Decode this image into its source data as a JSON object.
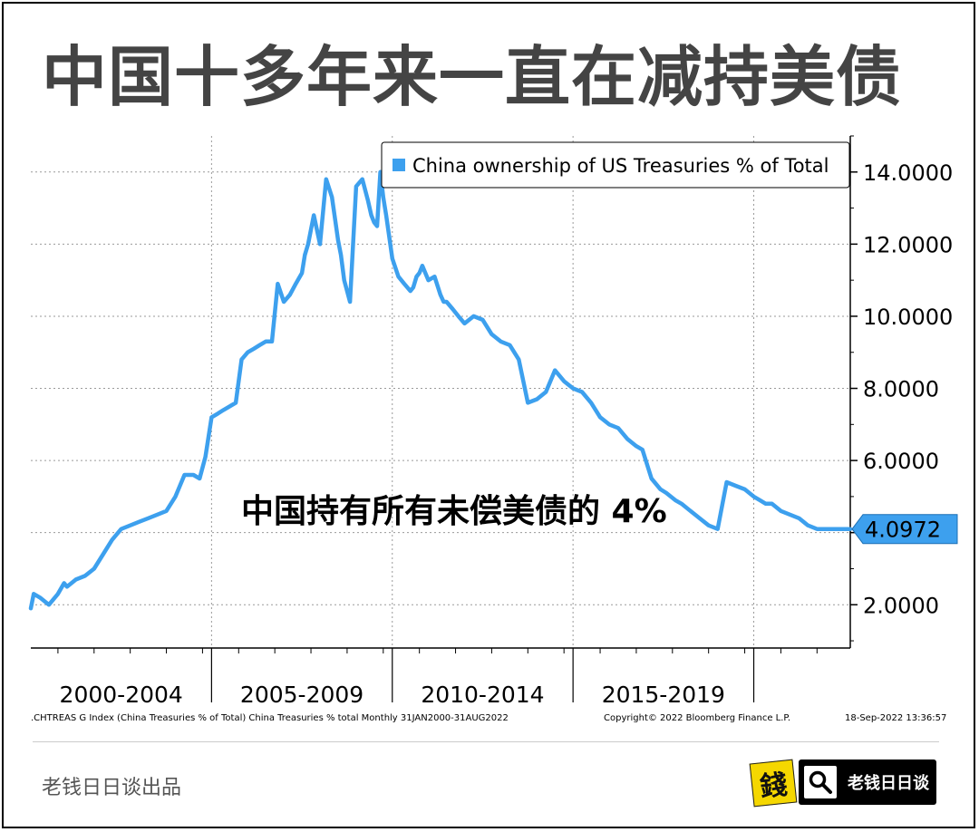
{
  "header": {
    "title": "中国十多年来一直在减持美债"
  },
  "chart_data": {
    "type": "line",
    "title": "",
    "legend_label": "China ownership of US Treasuries % of Total",
    "legend_position": "top-right",
    "y_axis_side": "right",
    "ylim": [
      0.8,
      15
    ],
    "yticks": [
      2,
      4,
      6,
      8,
      10,
      12,
      14
    ],
    "ytick_labels": [
      "2.0000",
      "",
      "6.0000",
      "8.0000",
      "10.0000",
      "12.0000",
      "14.0000"
    ],
    "xlim": [
      2000.0,
      2022.67
    ],
    "x_period_labels": [
      {
        "label": "2000-2004",
        "center": 2002.5
      },
      {
        "label": "2005-2009",
        "center": 2007.5
      },
      {
        "label": "2010-2014",
        "center": 2012.5
      },
      {
        "label": "2015-2019",
        "center": 2017.5
      }
    ],
    "x_period_boundaries": [
      2005,
      2010,
      2015,
      2020
    ],
    "x_year_ticks": [
      2000.75,
      2001.75,
      2002.75,
      2003.75,
      2004.75,
      2005.75,
      2006.75,
      2007.75,
      2008.75,
      2009.75,
      2010.75,
      2011.75,
      2012.75,
      2013.75,
      2014.75,
      2015.75,
      2016.75,
      2017.75,
      2018.75,
      2019.75,
      2020.75,
      2021.75,
      2022.75
    ],
    "grid": true,
    "last_value_label": "4.0972",
    "series": [
      {
        "name": "China ownership of US Treasuries % of Total",
        "color": "#3da0ee",
        "x": [
          2000.0,
          2000.08,
          2000.25,
          2000.5,
          2000.75,
          2000.92,
          2001.0,
          2001.25,
          2001.5,
          2001.75,
          2002.0,
          2002.25,
          2002.5,
          2002.75,
          2003.0,
          2003.25,
          2003.5,
          2003.75,
          2004.0,
          2004.25,
          2004.5,
          2004.67,
          2004.83,
          2005.0,
          2005.17,
          2005.33,
          2005.5,
          2005.67,
          2005.83,
          2006.0,
          2006.17,
          2006.33,
          2006.5,
          2006.67,
          2006.83,
          2007.0,
          2007.17,
          2007.33,
          2007.5,
          2007.58,
          2007.67,
          2007.75,
          2007.83,
          2008.0,
          2008.17,
          2008.33,
          2008.5,
          2008.58,
          2008.67,
          2008.83,
          2009.0,
          2009.17,
          2009.33,
          2009.42,
          2009.5,
          2009.58,
          2009.67,
          2009.75,
          2009.83,
          2010.0,
          2010.17,
          2010.33,
          2010.5,
          2010.58,
          2010.67,
          2010.75,
          2010.83,
          2011.0,
          2011.17,
          2011.33,
          2011.42,
          2011.5,
          2011.67,
          2011.83,
          2012.0,
          2012.25,
          2012.5,
          2012.75,
          2013.0,
          2013.25,
          2013.5,
          2013.75,
          2014.0,
          2014.25,
          2014.5,
          2014.75,
          2015.0,
          2015.25,
          2015.5,
          2015.75,
          2016.0,
          2016.25,
          2016.5,
          2016.75,
          2016.92,
          2017.17,
          2017.42,
          2017.58,
          2017.83,
          2018.0,
          2018.25,
          2018.5,
          2018.75,
          2019.0,
          2019.25,
          2019.5,
          2019.75,
          2020.0,
          2020.17,
          2020.33,
          2020.5,
          2020.75,
          2021.0,
          2021.25,
          2021.5,
          2021.75,
          2022.0,
          2022.25,
          2022.5,
          2022.67
        ],
        "values": [
          1.9,
          2.3,
          2.2,
          2.0,
          2.3,
          2.6,
          2.5,
          2.7,
          2.8,
          3.0,
          3.4,
          3.8,
          4.1,
          4.2,
          4.3,
          4.4,
          4.5,
          4.6,
          5.0,
          5.6,
          5.6,
          5.5,
          6.1,
          7.2,
          7.3,
          7.4,
          7.5,
          7.6,
          8.8,
          9.0,
          9.1,
          9.2,
          9.3,
          9.3,
          10.9,
          10.4,
          10.6,
          10.9,
          11.2,
          11.7,
          12.0,
          12.4,
          12.8,
          12.0,
          13.8,
          13.3,
          12.1,
          11.7,
          11.0,
          10.4,
          13.6,
          13.8,
          13.2,
          12.8,
          12.6,
          12.5,
          14.0,
          13.3,
          12.8,
          11.6,
          11.1,
          10.9,
          10.7,
          10.8,
          11.1,
          11.2,
          11.4,
          11.0,
          11.1,
          10.6,
          10.4,
          10.4,
          10.2,
          10.0,
          9.8,
          10.0,
          9.9,
          9.5,
          9.3,
          9.2,
          8.8,
          7.6,
          7.7,
          7.9,
          8.5,
          8.2,
          8.0,
          7.9,
          7.6,
          7.2,
          7.0,
          6.9,
          6.6,
          6.4,
          6.3,
          5.5,
          5.2,
          5.1,
          4.9,
          4.8,
          4.6,
          4.4,
          4.2,
          4.1,
          5.4,
          5.3,
          5.2,
          5.0,
          4.9,
          4.8,
          4.8,
          4.6,
          4.5,
          4.4,
          4.2,
          4.1,
          4.1,
          4.1,
          4.1,
          4.1
        ]
      }
    ],
    "annotation": "中国持有所有未偿美债的 4%"
  },
  "footnote": {
    "source": ".CHTREAS G Index (China Treasuries % of Total) China Treasuries % total  Monthly 31JAN2000-31AUG2022",
    "copyright": "Copyright© 2022 Bloomberg Finance L.P.",
    "timestamp": "18-Sep-2022 13:36:57"
  },
  "footer": {
    "publisher": "老钱日日谈出品",
    "logo_char": "錢",
    "badge_label": "老钱日日谈",
    "badge_icon": "search-icon"
  }
}
